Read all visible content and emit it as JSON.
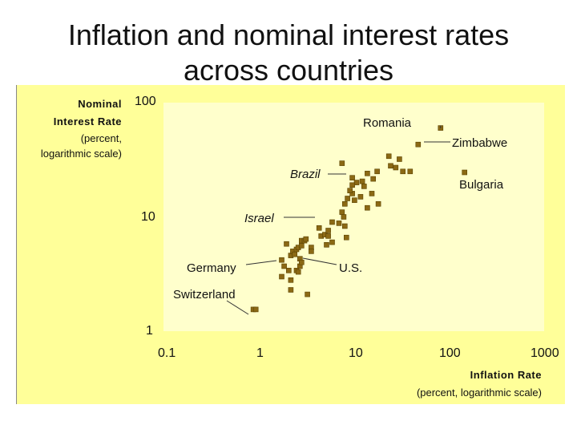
{
  "title_line1": "Inflation and nominal interest rates",
  "title_line2": "across countries",
  "colors": {
    "panel": "#ffff99",
    "plot": "#ffffcc",
    "point_fill": "#8b6914",
    "point_edge": "#5a4200"
  },
  "chart_data": {
    "type": "scatter",
    "ylabel_main": "Nominal",
    "ylabel_main2": "Interest Rate",
    "ylabel_note1": "(percent,",
    "ylabel_note2": "logarithmic scale)",
    "xlabel_main": "Inflation Rate",
    "xlabel_note": "(percent, logarithmic scale)",
    "xscale": "log",
    "yscale": "log",
    "xlim": [
      0.1,
      1000
    ],
    "ylim": [
      1,
      100
    ],
    "xticks": [
      "0.1",
      "1",
      "10",
      "100",
      "1000"
    ],
    "yticks": [
      "1",
      "10",
      "100"
    ],
    "points": [
      [
        0.8,
        1.55
      ],
      [
        0.85,
        1.55
      ],
      [
        1.6,
        4.2
      ],
      [
        1.7,
        3.7
      ],
      [
        1.6,
        3.0
      ],
      [
        1.9,
        3.4
      ],
      [
        2.0,
        4.6
      ],
      [
        2.1,
        5.0
      ],
      [
        2.2,
        4.7
      ],
      [
        2.3,
        5.2
      ],
      [
        2.4,
        5.4
      ],
      [
        2.5,
        4.3
      ],
      [
        2.5,
        3.7
      ],
      [
        2.6,
        5.6
      ],
      [
        2.6,
        6.2
      ],
      [
        2.8,
        6.2
      ],
      [
        2.9,
        6.4
      ],
      [
        3.3,
        5.4
      ],
      [
        3.3,
        5.0
      ],
      [
        1.8,
        5.8
      ],
      [
        2.3,
        3.4
      ],
      [
        2.6,
        4.0
      ],
      [
        2.4,
        3.3
      ],
      [
        2.0,
        2.8
      ],
      [
        2.0,
        2.3
      ],
      [
        3.0,
        2.1
      ],
      [
        4.0,
        8.0
      ],
      [
        4.2,
        6.8
      ],
      [
        4.6,
        7.0
      ],
      [
        5.0,
        6.8
      ],
      [
        4.8,
        5.7
      ],
      [
        5.5,
        6.0
      ],
      [
        5.0,
        7.6
      ],
      [
        5.5,
        9.0
      ],
      [
        6.5,
        8.8
      ],
      [
        7.0,
        11.0
      ],
      [
        7.3,
        10.0
      ],
      [
        7.5,
        8.3
      ],
      [
        7.8,
        6.6
      ],
      [
        7.5,
        13.0
      ],
      [
        8.0,
        14.5
      ],
      [
        9.0,
        16.0
      ],
      [
        8.5,
        17.0
      ],
      [
        9.5,
        14.0
      ],
      [
        10.0,
        20.0
      ],
      [
        9.0,
        22.0
      ],
      [
        11.0,
        15.0
      ],
      [
        11.5,
        20.5
      ],
      [
        12.0,
        18.5
      ],
      [
        13.0,
        12.0
      ],
      [
        14.5,
        16.0
      ],
      [
        15.0,
        21.5
      ],
      [
        13.0,
        24.0
      ],
      [
        17.0,
        13.0
      ],
      [
        16.5,
        25.0
      ],
      [
        9.0,
        19.0
      ],
      [
        7.0,
        29.5
      ],
      [
        22.0,
        34.0
      ],
      [
        26.0,
        27.0
      ],
      [
        23.0,
        28.0
      ],
      [
        28.5,
        32.0
      ],
      [
        31.0,
        25.0
      ],
      [
        37.0,
        25.0
      ],
      [
        45.0,
        43.0
      ],
      [
        78.0,
        60.0
      ],
      [
        140.0,
        24.5
      ]
    ],
    "annotations": [
      {
        "text": "Romania",
        "x": 78,
        "y": 60
      },
      {
        "text": "Zimbabwe",
        "x": 78,
        "y": 60
      },
      {
        "text": "Brazil",
        "x": 7.5,
        "y": 24.5
      },
      {
        "text": "Bulgaria",
        "x": 140,
        "y": 24.5
      },
      {
        "text": "Israel",
        "x": 4.5,
        "y": 10
      },
      {
        "text": "Germany",
        "x": 1.7,
        "y": 5.8
      },
      {
        "text": "U.S.",
        "x": 3.4,
        "y": 5.5
      },
      {
        "text": "Switzerland",
        "x": 0.8,
        "y": 1.55
      }
    ]
  }
}
